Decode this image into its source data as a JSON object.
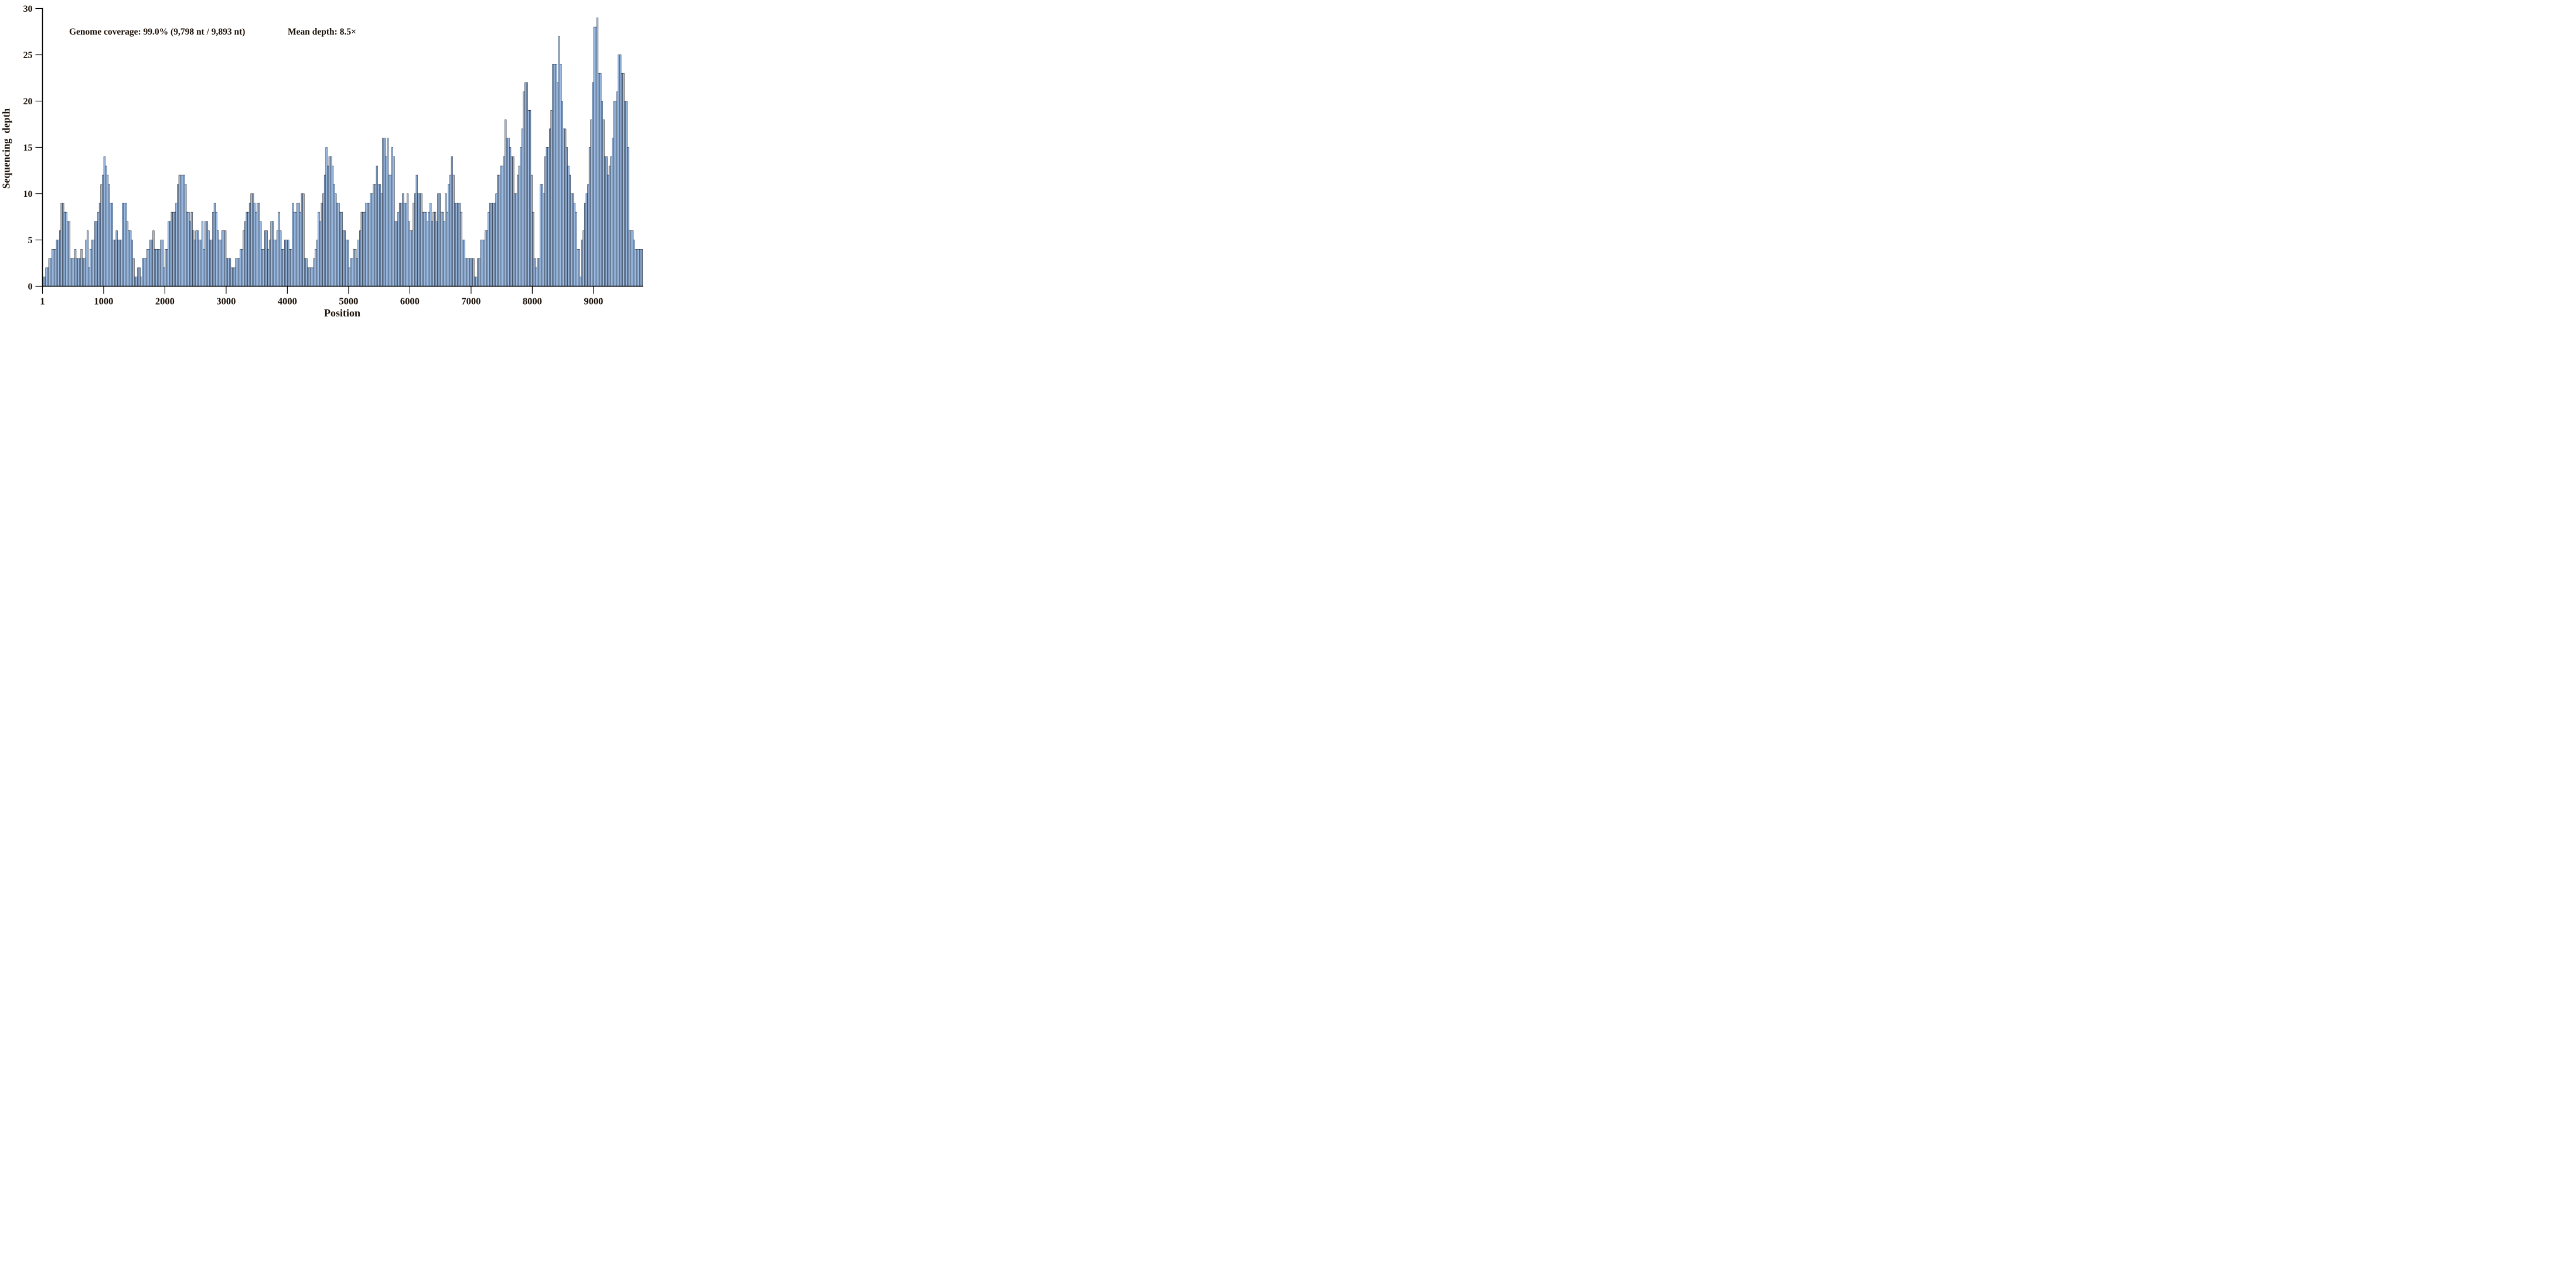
{
  "chart_data": {
    "type": "bar",
    "annotation": {
      "coverage_label": "Genome coverage: 99.0% (9,798 nt / 9,893 nt)",
      "mean_depth_label": "Mean depth: 8.5×"
    },
    "xlabel": "Position",
    "ylabel": "Sequencing  depth",
    "x_tick_values": [
      1,
      1000,
      2000,
      3000,
      4000,
      5000,
      6000,
      7000,
      8000,
      9000
    ],
    "x_tick_labels": [
      "1",
      "1000",
      "2000",
      "3000",
      "4000",
      "5000",
      "6000",
      "7000",
      "8000",
      "9000"
    ],
    "y_tick_values": [
      0,
      5,
      10,
      15,
      20,
      25,
      30
    ],
    "y_tick_labels": [
      "0",
      "5",
      "10",
      "15",
      "20",
      "25",
      "30"
    ],
    "ylim": [
      0,
      30
    ],
    "xlim": [
      1,
      9825
    ],
    "x_start": 1,
    "bin_size_nt": 25,
    "grid": false,
    "legend_position": "none",
    "bar_fill": "#9cbce4",
    "bar_stroke": "#0b0b10",
    "axis_color": "#000000",
    "text_color": "#1a1008",
    "background": "#ffffff",
    "depths": [
      1,
      1,
      2,
      2,
      3,
      3,
      4,
      4,
      4,
      5,
      5,
      6,
      9,
      9,
      8,
      8,
      7,
      7,
      3,
      3,
      3,
      4,
      3,
      3,
      3,
      4,
      3,
      3,
      5,
      6,
      2,
      4,
      5,
      5,
      7,
      7,
      8,
      9,
      11,
      12,
      14,
      13,
      12,
      11,
      9,
      9,
      5,
      5,
      6,
      5,
      5,
      5,
      9,
      9,
      9,
      7,
      6,
      6,
      5,
      3,
      1,
      1,
      2,
      2,
      1,
      3,
      3,
      3,
      4,
      4,
      5,
      5,
      6,
      4,
      4,
      4,
      4,
      5,
      5,
      2,
      4,
      4,
      7,
      7,
      8,
      8,
      8,
      9,
      11,
      12,
      12,
      12,
      12,
      11,
      8,
      8,
      7,
      8,
      6,
      5,
      6,
      6,
      5,
      5,
      7,
      4,
      7,
      7,
      6,
      5,
      5,
      8,
      9,
      8,
      6,
      5,
      5,
      6,
      6,
      6,
      3,
      3,
      3,
      2,
      2,
      2,
      3,
      3,
      3,
      4,
      4,
      6,
      7,
      8,
      8,
      9,
      10,
      10,
      9,
      8,
      9,
      9,
      7,
      4,
      4,
      6,
      6,
      4,
      5,
      7,
      7,
      5,
      5,
      6,
      8,
      6,
      4,
      4,
      5,
      5,
      5,
      4,
      4,
      9,
      8,
      8,
      9,
      9,
      8,
      10,
      10,
      3,
      3,
      2,
      2,
      2,
      2,
      3,
      4,
      5,
      8,
      7,
      9,
      10,
      12,
      15,
      13,
      14,
      14,
      13,
      11,
      10,
      9,
      9,
      8,
      8,
      6,
      6,
      5,
      5,
      2,
      3,
      3,
      4,
      4,
      3,
      5,
      6,
      8,
      8,
      8,
      9,
      9,
      9,
      10,
      10,
      11,
      11,
      13,
      11,
      11,
      10,
      16,
      16,
      14,
      16,
      12,
      12,
      15,
      14,
      7,
      7,
      8,
      9,
      9,
      10,
      9,
      9,
      10,
      7,
      6,
      6,
      9,
      10,
      12,
      10,
      10,
      10,
      8,
      8,
      8,
      7,
      8,
      9,
      7,
      8,
      8,
      7,
      10,
      10,
      8,
      8,
      7,
      10,
      8,
      11,
      12,
      14,
      12,
      9,
      9,
      9,
      9,
      8,
      5,
      5,
      3,
      3,
      3,
      3,
      3,
      3,
      1,
      1,
      3,
      3,
      5,
      5,
      5,
      6,
      6,
      8,
      9,
      9,
      9,
      9,
      10,
      12,
      12,
      13,
      13,
      14,
      18,
      16,
      16,
      15,
      14,
      14,
      10,
      10,
      12,
      13,
      15,
      17,
      21,
      22,
      22,
      19,
      19,
      12,
      8,
      3,
      2,
      3,
      3,
      11,
      11,
      10,
      14,
      15,
      15,
      17,
      19,
      24,
      24,
      24,
      22,
      27,
      24,
      20,
      17,
      17,
      15,
      13,
      12,
      10,
      10,
      9,
      8,
      4,
      4,
      1,
      5,
      6,
      9,
      10,
      11,
      15,
      18,
      22,
      28,
      28,
      29,
      23,
      23,
      20,
      18,
      14,
      14,
      12,
      13,
      14,
      16,
      20,
      20,
      21,
      25,
      25,
      23,
      23,
      20,
      20,
      15,
      6,
      6,
      6,
      5,
      4,
      4,
      4,
      4,
      4
    ]
  }
}
